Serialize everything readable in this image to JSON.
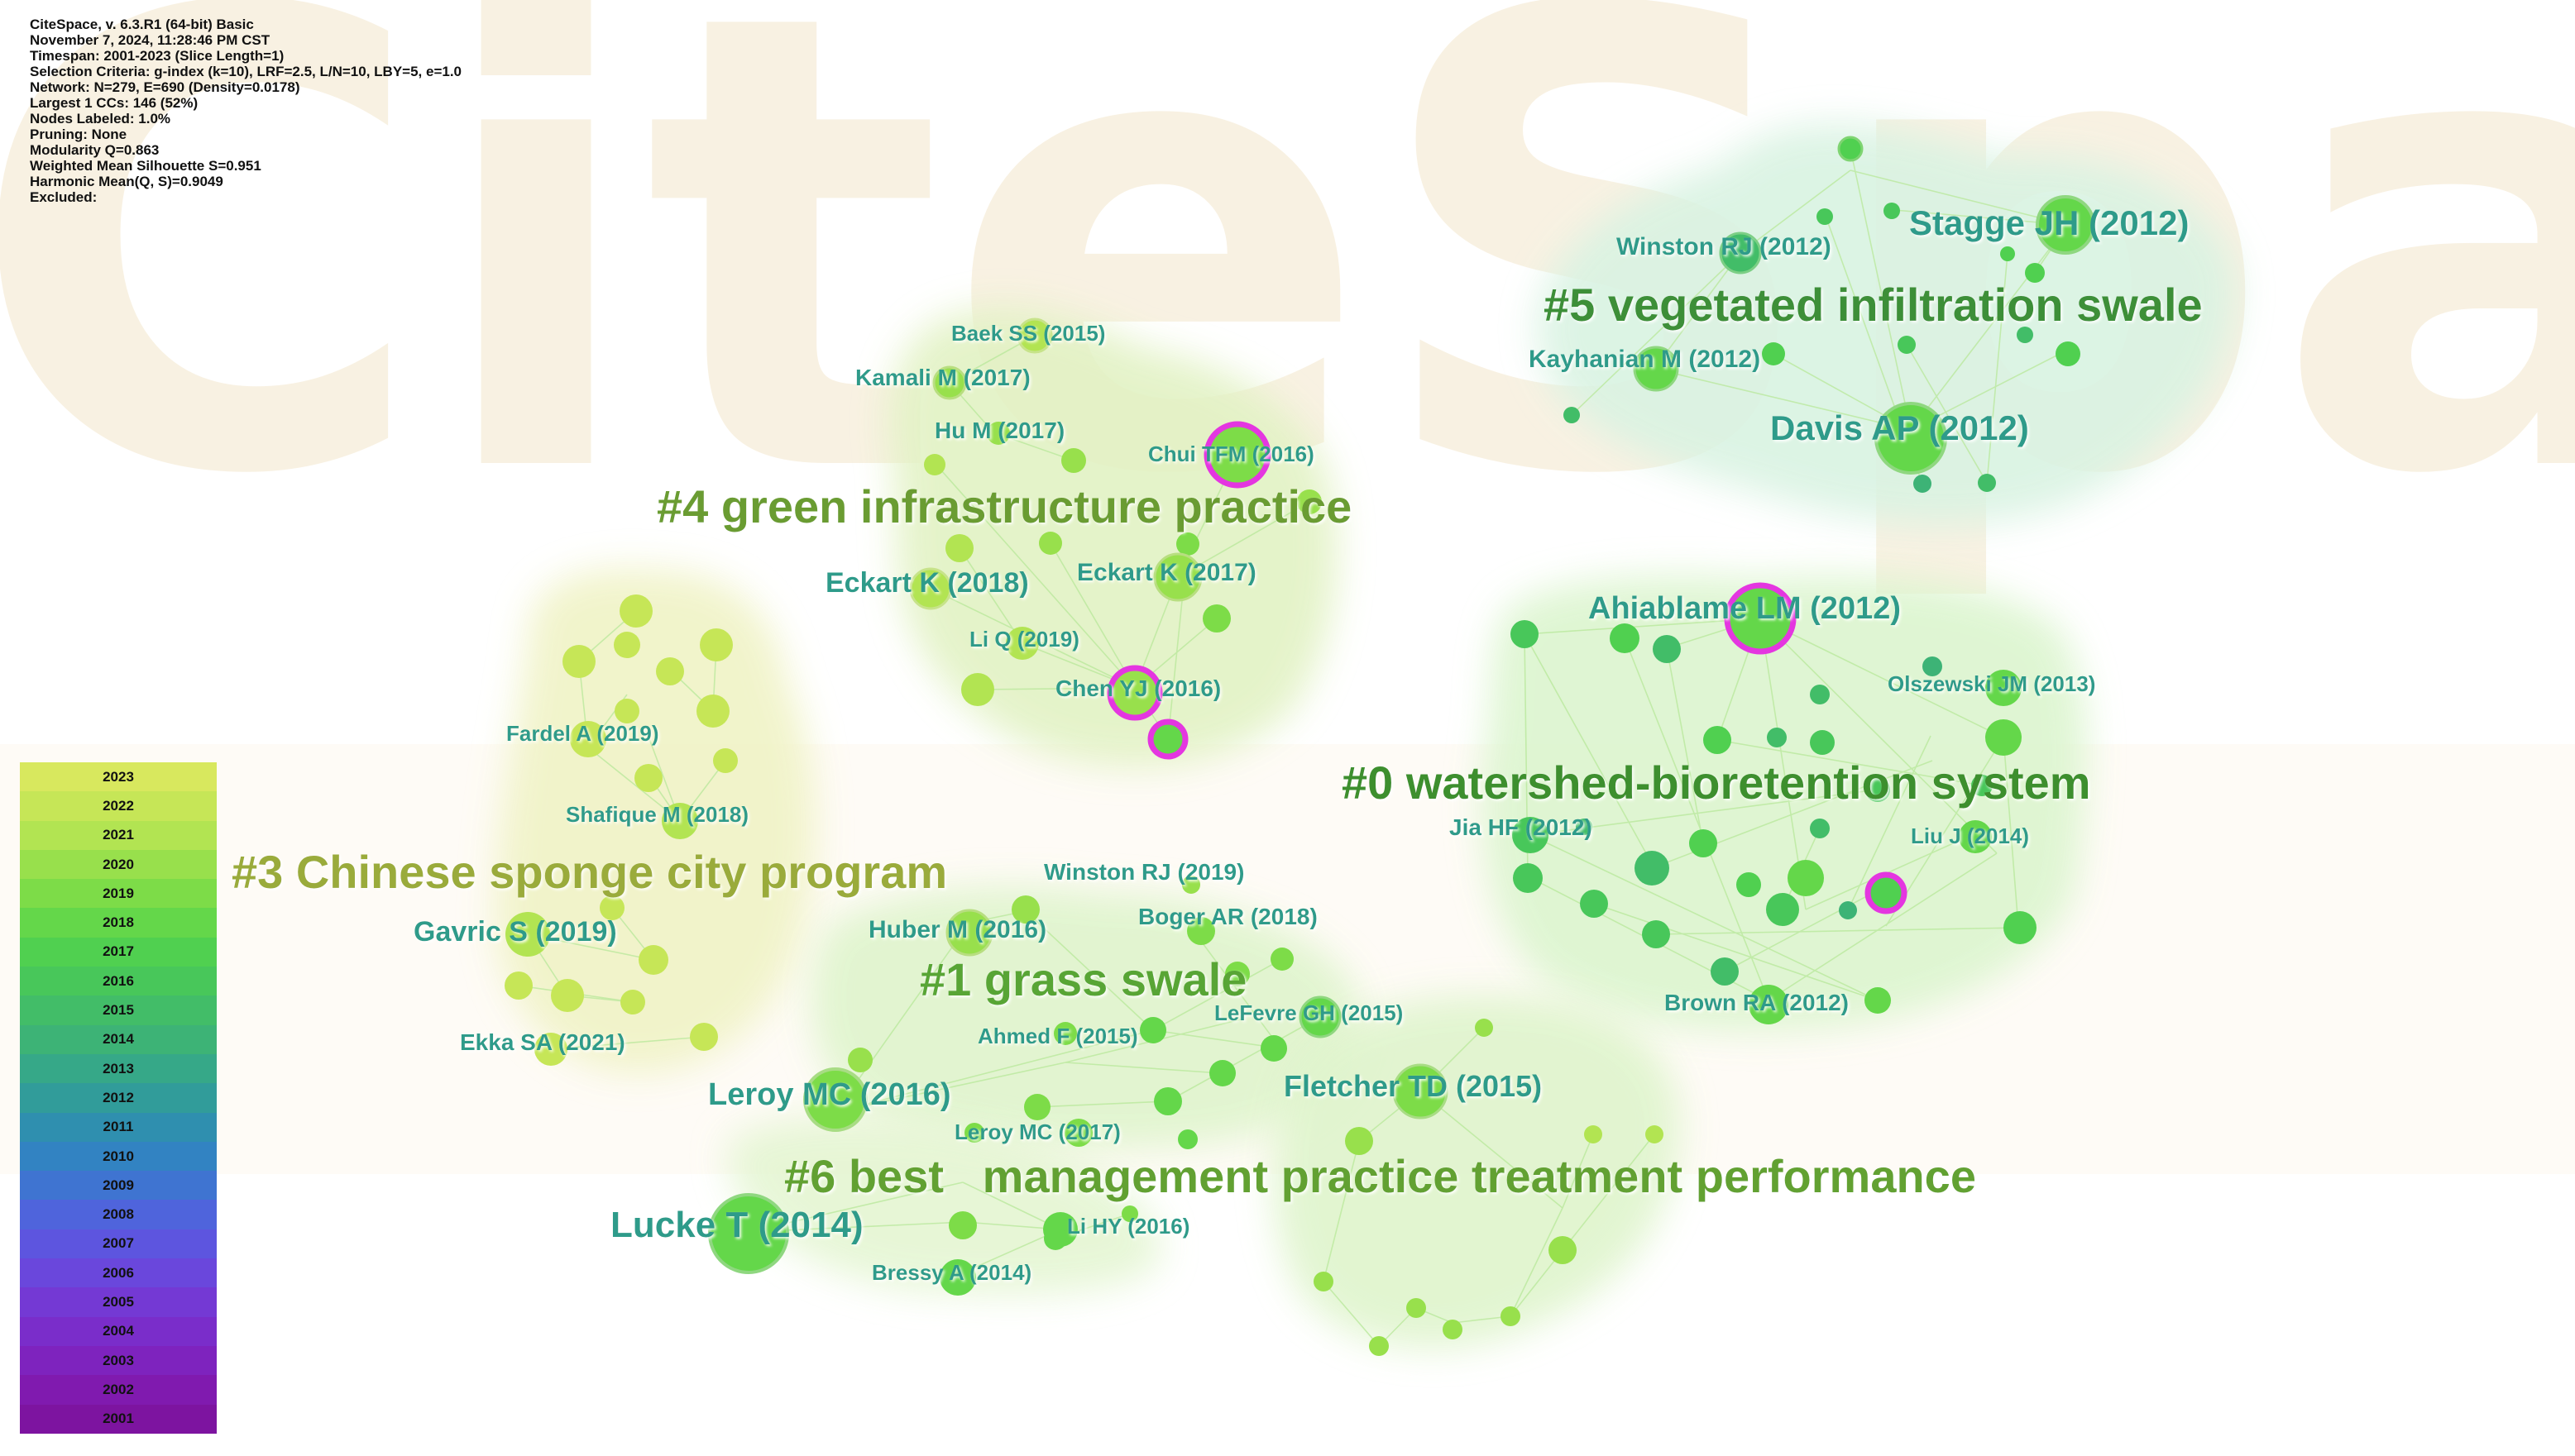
{
  "info": {
    "lines": [
      "CiteSpace, v. 6.3.R1 (64-bit) Basic",
      "November 7, 2024, 11:28:46 PM CST",
      "Timespan: 2001-2023 (Slice Length=1)",
      "Selection Criteria: g-index (k=10), LRF=2.5, L/N=10, LBY=5, e=1.0",
      "Network: N=279, E=690 (Density=0.0178)",
      "Largest 1 CCs: 146 (52%)",
      "Nodes Labeled: 1.0%",
      "Pruning: None",
      "Modularity Q=0.863",
      "Weighted Mean Silhouette S=0.951",
      "Harmonic Mean(Q, S)=0.9049",
      "Excluded:"
    ]
  },
  "watermark": "CiteSpace",
  "legend": {
    "years": [
      "2023",
      "2022",
      "2021",
      "2020",
      "2019",
      "2018",
      "2017",
      "2016",
      "2015",
      "2014",
      "2013",
      "2012",
      "2011",
      "2010",
      "2009",
      "2008",
      "2007",
      "2006",
      "2005",
      "2004",
      "2003",
      "2002",
      "2001"
    ],
    "colors": [
      "#d8e85e",
      "#c6e657",
      "#b2e452",
      "#98e04c",
      "#7ddc48",
      "#64d74a",
      "#50d050",
      "#48c75a",
      "#42bd68",
      "#3db376",
      "#36a888",
      "#319c9a",
      "#2f8faf",
      "#3283c2",
      "#3f74d1",
      "#4f64dc",
      "#5d55df",
      "#6a47dc",
      "#7439d4",
      "#7a2dca",
      "#7e23be",
      "#801aaf",
      "#7d14a0"
    ]
  },
  "clusters": [
    {
      "id": "c0",
      "label": "#0 watershed-bioretention system",
      "color": "#3d8f2e"
    },
    {
      "id": "c1",
      "label": "#1 grass swale",
      "color": "#58a534"
    },
    {
      "id": "c3",
      "label": "#3 Chinese sponge city program",
      "color": "#9aab3a"
    },
    {
      "id": "c4",
      "label": "#4 green infrastructure practice",
      "color": "#6a9c30"
    },
    {
      "id": "c5",
      "label": "#5 vegetated infiltration swale",
      "color": "#3d8f38"
    },
    {
      "id": "c6",
      "label": "#6 best   management practice treatment performance",
      "color": "#62a132"
    }
  ],
  "node_labels": [
    "Stagge JH (2012)",
    "Winston RJ (2012)",
    "Kayhanian M (2012)",
    "Davis AP (2012)",
    "Baek SS (2015)",
    "Kamali M (2017)",
    "Hu M (2017)",
    "Chui TFM (2016)",
    "Eckart K (2018)",
    "Eckart K (2017)",
    "Li Q (2019)",
    "Chen YJ (2016)",
    "Ahiablame LM (2012)",
    "Olszewski JM (2013)",
    "Jia HF (2012)",
    "Liu J (2014)",
    "Brown RA (2012)",
    "Fardel A (2019)",
    "Shafique M (2018)",
    "Gavric S (2019)",
    "Ekka SA (2021)",
    "Winston RJ (2019)",
    "Boger AR (2018)",
    "Huber M (2016)",
    "LeFevre GH (2015)",
    "Ahmed F (2015)",
    "Leroy MC (2016)",
    "Leroy MC (2017)",
    "Fletcher TD (2015)",
    "Lucke T (2014)",
    "Li HY (2016)",
    "Bressy A (2014)"
  ]
}
